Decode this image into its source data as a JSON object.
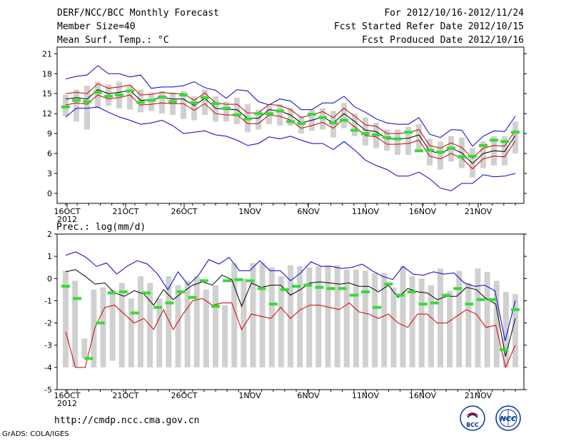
{
  "header": {
    "title": "DERF/NCC/BCC Monthly Forecast",
    "member": "Member Size=40",
    "variable": "Mean Surf. Temp.: °C",
    "period": "For 2012/10/16-2012/11/24",
    "refer": "Fcst Started Refer Date 2012/10/15",
    "produced": "Fcst Produced Date 2012/10/16"
  },
  "footer": {
    "url": "http://cmdp.ncc.cma.gov.cn",
    "credit": "GrADS: COLA/IGES",
    "logo_bcc": "BCC",
    "logo_ncc": "NCC"
  },
  "colors": {
    "max": "#0000cc",
    "min": "#cc0000",
    "mean": "#000000",
    "obs": "#33dd33",
    "box": "#d0d0d0"
  },
  "chart_data": [
    {
      "type": "box-line",
      "title": "Mean Surf. Temp.: °C",
      "xlabels": [
        "16OCT",
        "21OCT",
        "26OCT",
        "1NOV",
        "6NOV",
        "11NOV",
        "16NOV",
        "21NOV"
      ],
      "year": "2012",
      "ylim": [
        -1.5,
        22
      ],
      "yticks": [
        0,
        3,
        6,
        9,
        12,
        15,
        18,
        21
      ],
      "series": {
        "max": [
          17.2,
          17.6,
          17.8,
          19.2,
          18.0,
          18.0,
          17.5,
          17.8,
          15.8,
          16.0,
          16.0,
          16.2,
          16.8,
          15.9,
          15.5,
          14.3,
          15.6,
          15.4,
          13.8,
          13.3,
          14.2,
          13.9,
          12.6,
          12.6,
          13.6,
          13.6,
          14.6,
          13.0,
          12.2,
          11.2,
          10.6,
          10.4,
          10.4,
          11.4,
          8.9,
          8.4,
          9.6,
          9.5,
          7.1,
          8.6,
          9.4,
          9.3,
          11.6
        ],
        "mean": [
          14.2,
          14.4,
          14.2,
          15.6,
          15.0,
          15.2,
          15.5,
          14.0,
          14.1,
          14.4,
          14.2,
          14.2,
          13.2,
          14.3,
          12.8,
          12.6,
          12.6,
          11.3,
          11.3,
          12.6,
          12.4,
          11.8,
          10.6,
          11.0,
          11.5,
          10.6,
          12.0,
          10.8,
          9.5,
          9.3,
          8.2,
          8.2,
          8.3,
          8.8,
          6.4,
          6.0,
          6.8,
          6.1,
          4.5,
          6.0,
          6.4,
          6.3,
          8.7
        ],
        "upper_red": [
          13.3,
          13.6,
          13.4,
          14.8,
          14.2,
          14.4,
          14.8,
          13.3,
          13.4,
          13.6,
          13.5,
          13.5,
          12.5,
          13.5,
          12.0,
          11.8,
          11.8,
          10.5,
          10.5,
          11.8,
          11.6,
          11.0,
          9.8,
          10.2,
          10.7,
          9.8,
          11.2,
          10.0,
          8.7,
          8.5,
          7.4,
          7.4,
          7.5,
          8.0,
          5.6,
          5.2,
          6.0,
          5.3,
          3.7,
          5.2,
          5.6,
          5.5,
          7.9
        ],
        "lower_red": [
          15.0,
          15.2,
          15.0,
          16.5,
          15.8,
          16.0,
          16.3,
          14.8,
          14.9,
          15.2,
          15.0,
          15.0,
          14.0,
          15.1,
          13.6,
          13.4,
          13.4,
          12.1,
          12.1,
          13.4,
          13.2,
          12.6,
          11.4,
          11.8,
          12.3,
          11.4,
          12.8,
          11.6,
          10.3,
          10.1,
          9.0,
          9.0,
          9.1,
          9.6,
          7.2,
          6.8,
          7.6,
          6.9,
          5.3,
          6.8,
          7.2,
          7.1,
          9.5
        ],
        "min": [
          11.5,
          12.8,
          12.8,
          13.0,
          12.2,
          11.5,
          11.0,
          10.4,
          10.6,
          11.0,
          10.2,
          9.0,
          9.2,
          9.4,
          8.8,
          8.6,
          8.0,
          7.2,
          7.5,
          8.5,
          8.2,
          8.6,
          8.0,
          7.5,
          7.5,
          6.6,
          7.8,
          6.5,
          5.0,
          4.2,
          3.6,
          2.6,
          2.6,
          3.2,
          2.2,
          0.8,
          0.4,
          1.5,
          1.5,
          2.8,
          2.5,
          2.6,
          3.0
        ],
        "obs": [
          13.0,
          14.0,
          13.8,
          15.2,
          14.6,
          14.8,
          15.4,
          13.7,
          14.0,
          14.5,
          13.8,
          14.8,
          13.6,
          14.4,
          13.5,
          12.8,
          11.8,
          11.2,
          12.0,
          12.0,
          12.4,
          10.8,
          10.5,
          11.9,
          11.4,
          10.6,
          11.0,
          9.5,
          9.0,
          8.8,
          8.4,
          8.2,
          9.2,
          6.4,
          6.5,
          6.2,
          6.8,
          5.5,
          5.6,
          7.2,
          8.0,
          7.8,
          9.2
        ],
        "box_hi": [
          14.8,
          15.6,
          16.2,
          16.8,
          16.4,
          16.8,
          16.2,
          15.6,
          15.2,
          15.4,
          15.2,
          15.4,
          14.6,
          15.6,
          14.6,
          13.8,
          14.4,
          13.4,
          12.6,
          13.2,
          13.4,
          12.8,
          11.6,
          12.6,
          12.8,
          12.4,
          13.6,
          12.0,
          11.4,
          10.6,
          9.6,
          9.6,
          10.0,
          10.4,
          8.2,
          7.8,
          8.6,
          8.4,
          6.8,
          7.8,
          8.6,
          8.6,
          10.8
        ],
        "box_lo": [
          11.6,
          10.8,
          9.6,
          12.8,
          13.2,
          12.8,
          12.6,
          12.2,
          12.4,
          12.0,
          11.8,
          11.2,
          11.0,
          11.8,
          10.8,
          10.8,
          10.4,
          9.2,
          9.6,
          10.4,
          10.2,
          10.2,
          9.0,
          9.4,
          9.6,
          8.4,
          9.8,
          8.6,
          7.2,
          6.8,
          6.4,
          5.8,
          5.8,
          6.6,
          4.2,
          3.6,
          4.8,
          3.8,
          2.4,
          3.8,
          4.2,
          4.2,
          6.0
        ]
      }
    },
    {
      "type": "box-line",
      "title": "Prec.: log(mm/d)",
      "xlabels": [
        "16OCT",
        "21OCT",
        "26OCT",
        "1NOV",
        "6NOV",
        "11NOV",
        "16NOV",
        "21NOV"
      ],
      "year": "2012",
      "ylim": [
        -5,
        2
      ],
      "yticks": [
        -5,
        -4,
        -3,
        -2,
        -1,
        0,
        1,
        2
      ],
      "series": {
        "max": [
          1.05,
          1.2,
          0.95,
          0.55,
          0.7,
          0.2,
          0.55,
          0.8,
          0.65,
          0.2,
          -0.5,
          0.3,
          -0.3,
          0.15,
          0.85,
          0.65,
          0.95,
          0.35,
          0.35,
          0.8,
          0.35,
          0.35,
          -0.1,
          0.25,
          0.75,
          0.55,
          0.55,
          0.45,
          0.5,
          0.65,
          0.35,
          0.1,
          -0.05,
          0.55,
          0.2,
          0.15,
          0.3,
          0.2,
          0.25,
          -0.2,
          -0.35,
          -0.3,
          -0.55,
          -2.8,
          -1.0
        ],
        "mean": [
          0.3,
          0.4,
          0.1,
          -0.25,
          -0.2,
          -0.65,
          -0.8,
          -0.55,
          -0.7,
          -1.2,
          -0.5,
          -0.95,
          -0.6,
          -0.3,
          -0.15,
          -0.3,
          0.15,
          -0.05,
          -1.25,
          -0.2,
          -0.4,
          -0.3,
          -0.3,
          -0.75,
          -0.5,
          -0.2,
          -0.15,
          -0.2,
          -0.25,
          -0.2,
          -0.35,
          -0.35,
          -0.6,
          -0.3,
          -0.85,
          -0.45,
          -0.6,
          -0.65,
          -0.95,
          -0.8,
          -0.8,
          -0.4,
          -0.5,
          -0.9,
          -1.15,
          -3.5,
          -1.8
        ],
        "red": [
          -2.4,
          -4.0,
          -4.0,
          -2.2,
          -1.3,
          -1.2,
          -1.6,
          -2.0,
          -1.8,
          -2.3,
          -1.4,
          -2.3,
          -1.6,
          -1.0,
          -0.9,
          -1.2,
          -1.1,
          -1.1,
          -2.3,
          -1.6,
          -1.7,
          -1.8,
          -1.3,
          -1.8,
          -1.4,
          -1.2,
          -1.2,
          -1.3,
          -1.4,
          -1.1,
          -1.5,
          -1.6,
          -1.8,
          -1.6,
          -2.0,
          -2.2,
          -1.6,
          -1.6,
          -2.0,
          -2.0,
          -1.7,
          -1.4,
          -1.6,
          -2.2,
          -2.1,
          -4.0,
          -3.0
        ],
        "obs": [
          -0.35,
          -0.9,
          -3.6,
          -2.0,
          -0.65,
          -0.6,
          -1.55,
          -0.65,
          -1.3,
          -1.1,
          -0.6,
          -0.85,
          -0.1,
          -1.25,
          -0.1,
          -0.05,
          -0.1,
          -0.45,
          -1.15,
          -0.5,
          -0.35,
          -0.3,
          -0.4,
          -0.45,
          -0.45,
          -0.75,
          -0.6,
          -1.3,
          -0.25,
          -0.75,
          -0.6,
          -1.15,
          -1.1,
          -0.75,
          -0.45,
          -1.15,
          -0.95,
          -0.95,
          -3.2,
          -1.4
        ],
        "box_hi": [
          0.35,
          -0.1,
          -2.7,
          -0.5,
          -0.4,
          -0.5,
          -0.2,
          -0.9,
          0.1,
          -0.2,
          -0.9,
          0.1,
          -0.3,
          -0.1,
          0.1,
          -0.5,
          -0.3,
          -1.2,
          0.7,
          0.0,
          0.7,
          0.7,
          0.5,
          0.1,
          0.6,
          0.55,
          0.5,
          0.55,
          0.6,
          0.6,
          0.4,
          0.4,
          0.35,
          0.25,
          0.25,
          -0.4,
          0.55,
          0.1,
          0.0,
          -0.3,
          0.45,
          -0.55,
          0.35,
          -0.2,
          0.45,
          0.3,
          -0.1,
          -0.6,
          -0.7
        ],
        "box_lo": [
          -4.0,
          -4.0,
          -3.6,
          -4.0,
          -4.0,
          -3.7,
          -4.0,
          -4.0,
          -4.0,
          -4.0,
          -4.0,
          -4.0,
          -4.0,
          -4.0,
          -4.0,
          -4.0,
          -4.0,
          -4.0,
          -4.0,
          -4.0,
          -4.0,
          -4.0,
          -4.0,
          -4.0,
          -4.0,
          -4.0,
          -4.0,
          -4.0,
          -4.0,
          -4.0,
          -4.0,
          -4.0,
          -4.0,
          -4.0,
          -4.0,
          -4.0,
          -4.0,
          -4.0,
          -4.0,
          -4.0,
          -4.0,
          -4.0,
          -4.0,
          -4.0,
          -4.0,
          -4.0,
          -4.0,
          -4.0,
          -4.0
        ]
      }
    }
  ]
}
